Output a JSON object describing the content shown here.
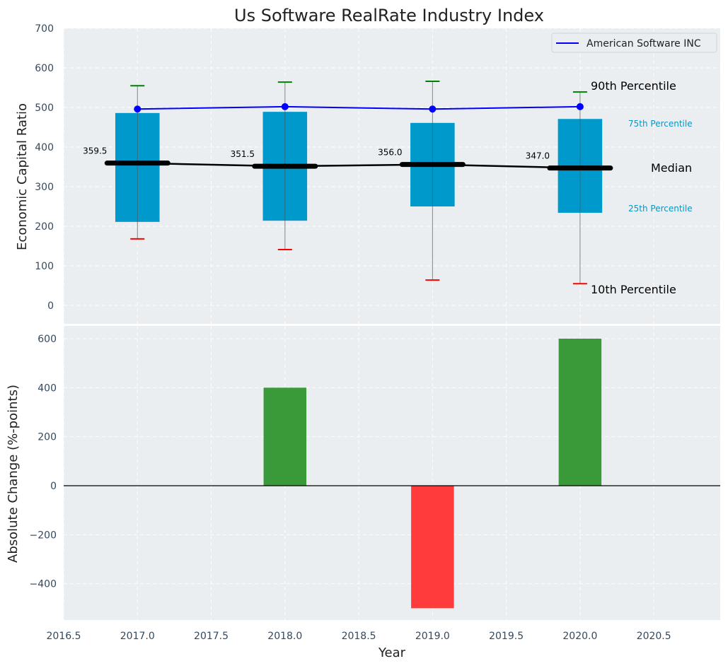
{
  "chart_data": [
    {
      "type": "box",
      "title": "Us Software RealRate Industry Index",
      "xlabel": "",
      "ylabel": "Economic Capital Ratio",
      "ylim": [
        -50,
        700
      ],
      "yticks": [
        0,
        100,
        200,
        300,
        400,
        500,
        600,
        700
      ],
      "x": [
        2017,
        2018,
        2019,
        2020
      ],
      "percentiles": {
        "p10": [
          168,
          141,
          64,
          55
        ],
        "p25": [
          211,
          214,
          250,
          234
        ],
        "median": [
          359.5,
          351.5,
          356.0,
          347.0
        ],
        "p75": [
          486,
          489,
          461,
          471
        ],
        "p90": [
          555,
          564,
          566,
          539
        ]
      },
      "median_labels": [
        "359.5",
        "351.5",
        "356.0",
        "347.0"
      ],
      "series": [
        {
          "name": "American Software INC",
          "values": [
            496,
            502,
            496,
            502
          ],
          "color": "#0000ff"
        }
      ],
      "annotations": {
        "p90": "90th Percentile",
        "p75": "75th Percentile",
        "median": "Median",
        "p25": "25th Percentile",
        "p10": "10th Percentile"
      },
      "legend": {
        "position": "top-right",
        "entries": [
          "American Software INC"
        ]
      },
      "grid": true,
      "colors": {
        "box": "#0099cc",
        "p90": "#008000",
        "p10": "#ff0000",
        "median": "#000000",
        "annotation_small": "#0099cc"
      }
    },
    {
      "type": "bar",
      "xlabel": "Year",
      "ylabel": "Absolute Change (%-points)",
      "ylim": [
        -550,
        650
      ],
      "yticks": [
        -400,
        -200,
        0,
        200,
        400,
        600
      ],
      "ytick_labels": [
        "−400",
        "−200",
        "0",
        "200",
        "400",
        "600"
      ],
      "xlim": [
        2016.5,
        2020.95
      ],
      "xticks": [
        2016.5,
        2017.0,
        2017.5,
        2018.0,
        2018.5,
        2019.0,
        2019.5,
        2020.0,
        2020.5
      ],
      "xtick_labels": [
        "2016.5",
        "2017.0",
        "2017.5",
        "2018.0",
        "2018.5",
        "2019.0",
        "2019.5",
        "2020.0",
        "2020.5"
      ],
      "x": [
        2017,
        2018,
        2019,
        2020
      ],
      "values": [
        0,
        400,
        -500,
        600
      ],
      "colors": {
        "positive": "#3a9a3a",
        "negative": "#ff3b3b"
      },
      "grid": true
    }
  ]
}
